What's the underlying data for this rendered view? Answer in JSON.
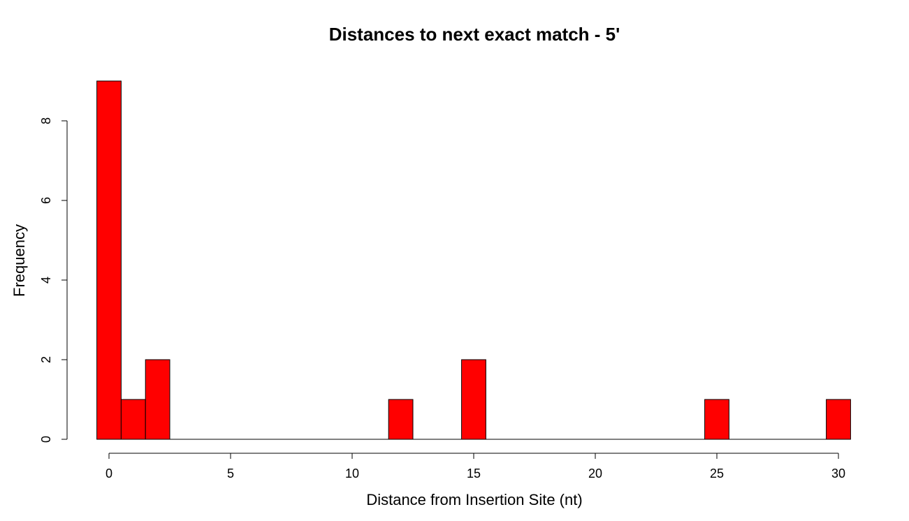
{
  "chart_data": {
    "type": "bar",
    "title": "Distances to next exact match - 5'",
    "xlabel": "Distance from Insertion Site (nt)",
    "ylabel": "Frequency",
    "bar_color": "#ff0000",
    "xlim": [
      -0.5,
      30.5
    ],
    "ylim": [
      0,
      9
    ],
    "x_ticks": [
      0,
      5,
      10,
      15,
      20,
      25,
      30
    ],
    "y_ticks": [
      0,
      2,
      4,
      6,
      8
    ],
    "bins": [
      {
        "x": 0,
        "value": 9
      },
      {
        "x": 1,
        "value": 1
      },
      {
        "x": 2,
        "value": 2
      },
      {
        "x": 12,
        "value": 1
      },
      {
        "x": 15,
        "value": 2
      },
      {
        "x": 25,
        "value": 1
      },
      {
        "x": 30,
        "value": 1
      }
    ]
  }
}
